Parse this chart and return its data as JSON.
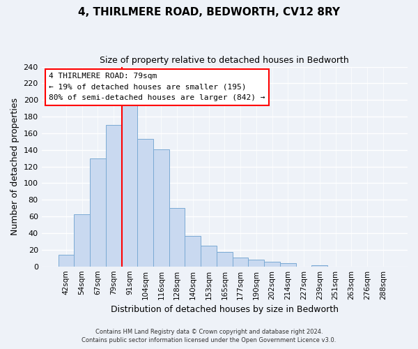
{
  "title": "4, THIRLMERE ROAD, BEDWORTH, CV12 8RY",
  "subtitle": "Size of property relative to detached houses in Bedworth",
  "xlabel": "Distribution of detached houses by size in Bedworth",
  "ylabel": "Number of detached properties",
  "bar_labels": [
    "42sqm",
    "54sqm",
    "67sqm",
    "79sqm",
    "91sqm",
    "104sqm",
    "116sqm",
    "128sqm",
    "140sqm",
    "153sqm",
    "165sqm",
    "177sqm",
    "190sqm",
    "202sqm",
    "214sqm",
    "227sqm",
    "239sqm",
    "251sqm",
    "263sqm",
    "276sqm",
    "288sqm"
  ],
  "bar_values": [
    14,
    63,
    130,
    170,
    200,
    153,
    141,
    70,
    37,
    25,
    17,
    11,
    8,
    6,
    4,
    0,
    1,
    0,
    0,
    0,
    0
  ],
  "bar_color": "#c9d9f0",
  "bar_edge_color": "#7aaad4",
  "vline_color": "red",
  "annotation_title": "4 THIRLMERE ROAD: 79sqm",
  "annotation_line1": "← 19% of detached houses are smaller (195)",
  "annotation_line2": "80% of semi-detached houses are larger (842) →",
  "annotation_box_color": "white",
  "annotation_box_edge": "red",
  "footer1": "Contains HM Land Registry data © Crown copyright and database right 2024.",
  "footer2": "Contains public sector information licensed under the Open Government Licence v3.0.",
  "ylim": [
    0,
    240
  ],
  "yticks": [
    0,
    20,
    40,
    60,
    80,
    100,
    120,
    140,
    160,
    180,
    200,
    220,
    240
  ],
  "background_color": "#eef2f8"
}
